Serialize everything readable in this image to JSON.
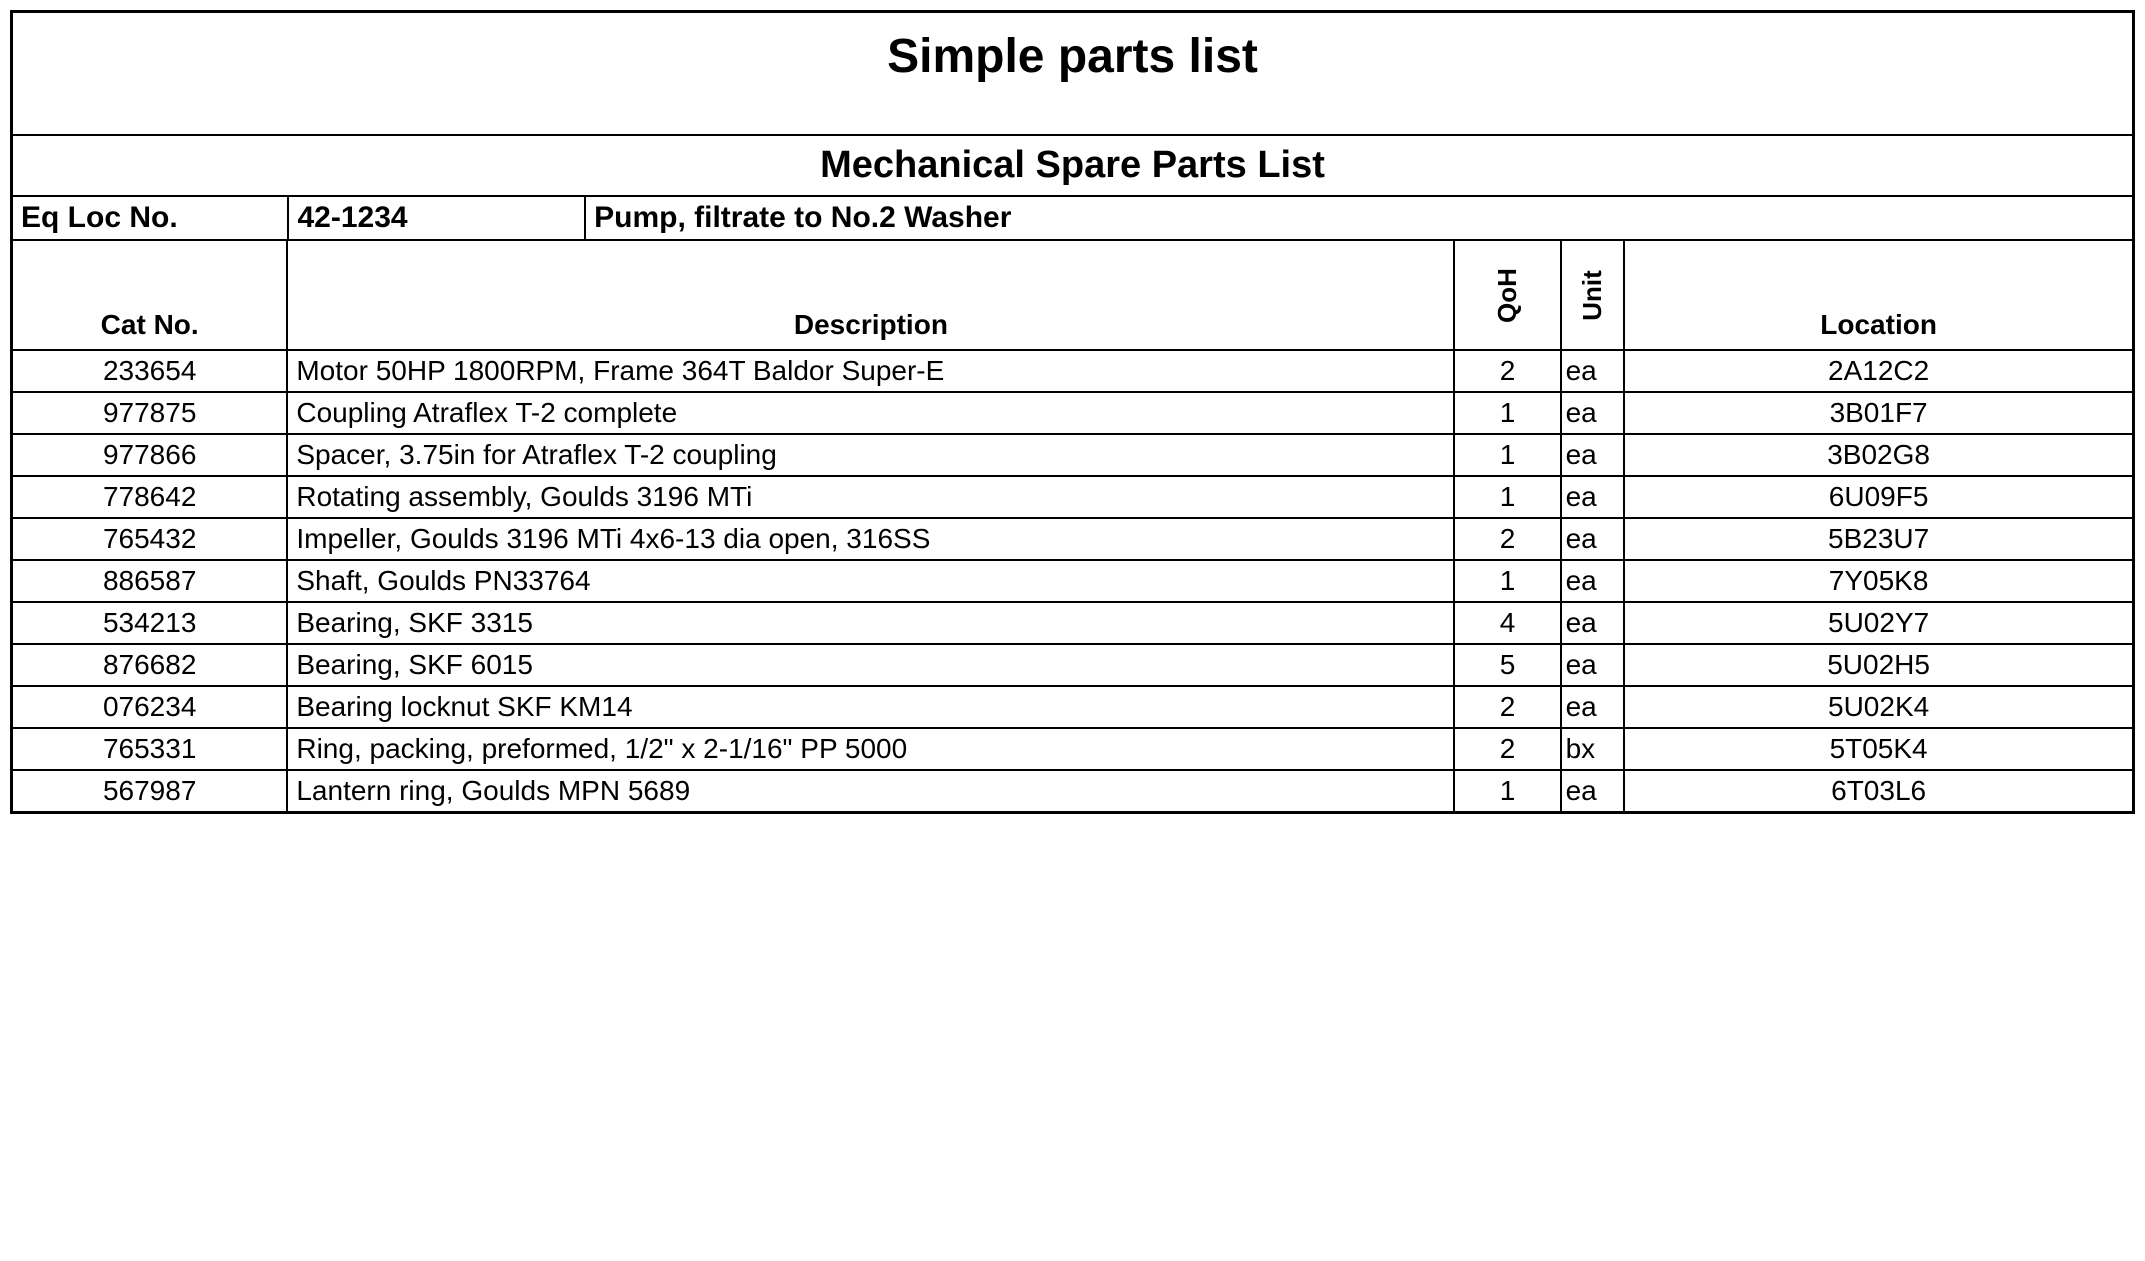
{
  "title": "Simple parts list",
  "subtitle": "Mechanical Spare Parts List",
  "equipment": {
    "label": "Eq Loc  No.",
    "number": "42-1234",
    "description": "Pump, filtrate to No.2 Washer"
  },
  "columns": {
    "catno": "Cat No.",
    "description": "Description",
    "qoh": "QoH",
    "unit": "Unit",
    "location": "Location"
  },
  "rows": [
    {
      "catno": "233654",
      "description": "Motor 50HP 1800RPM, Frame 364T Baldor Super-E",
      "qoh": "2",
      "unit": "ea",
      "location": "2A12C2"
    },
    {
      "catno": "977875",
      "description": "Coupling Atraflex T-2 complete",
      "qoh": "1",
      "unit": "ea",
      "location": "3B01F7"
    },
    {
      "catno": "977866",
      "description": "Spacer, 3.75in for Atraflex T-2 coupling",
      "qoh": "1",
      "unit": "ea",
      "location": "3B02G8"
    },
    {
      "catno": "778642",
      "description": "Rotating assembly, Goulds 3196 MTi",
      "qoh": "1",
      "unit": "ea",
      "location": "6U09F5"
    },
    {
      "catno": "765432",
      "description": "Impeller, Goulds 3196 MTi 4x6-13 dia open, 316SS",
      "qoh": "2",
      "unit": "ea",
      "location": "5B23U7"
    },
    {
      "catno": "886587",
      "description": "Shaft, Goulds PN33764",
      "qoh": "1",
      "unit": "ea",
      "location": "7Y05K8"
    },
    {
      "catno": "534213",
      "description": "Bearing, SKF 3315",
      "qoh": "4",
      "unit": "ea",
      "location": "5U02Y7"
    },
    {
      "catno": "876682",
      "description": "Bearing, SKF 6015",
      "qoh": "5",
      "unit": "ea",
      "location": "5U02H5"
    },
    {
      "catno": "076234",
      "description": "Bearing locknut SKF KM14",
      "qoh": "2",
      "unit": "ea",
      "location": "5U02K4"
    },
    {
      "catno": "765331",
      "description": "Ring, packing, preformed, 1/2\" x 2-1/16\" PP 5000",
      "qoh": "2",
      "unit": "bx",
      "location": "5T05K4"
    },
    {
      "catno": "567987",
      "description": "Lantern ring, Goulds MPN 5689",
      "qoh": "1",
      "unit": "ea",
      "location": "6T03L6"
    }
  ],
  "styling": {
    "border_color": "#000000",
    "text_color": "#000000",
    "background_color": "#ffffff",
    "title_fontsize": 48,
    "subtitle_fontsize": 38,
    "header_fontsize": 28,
    "cell_fontsize": 28,
    "font_family": "Arial, Helvetica, sans-serif"
  }
}
